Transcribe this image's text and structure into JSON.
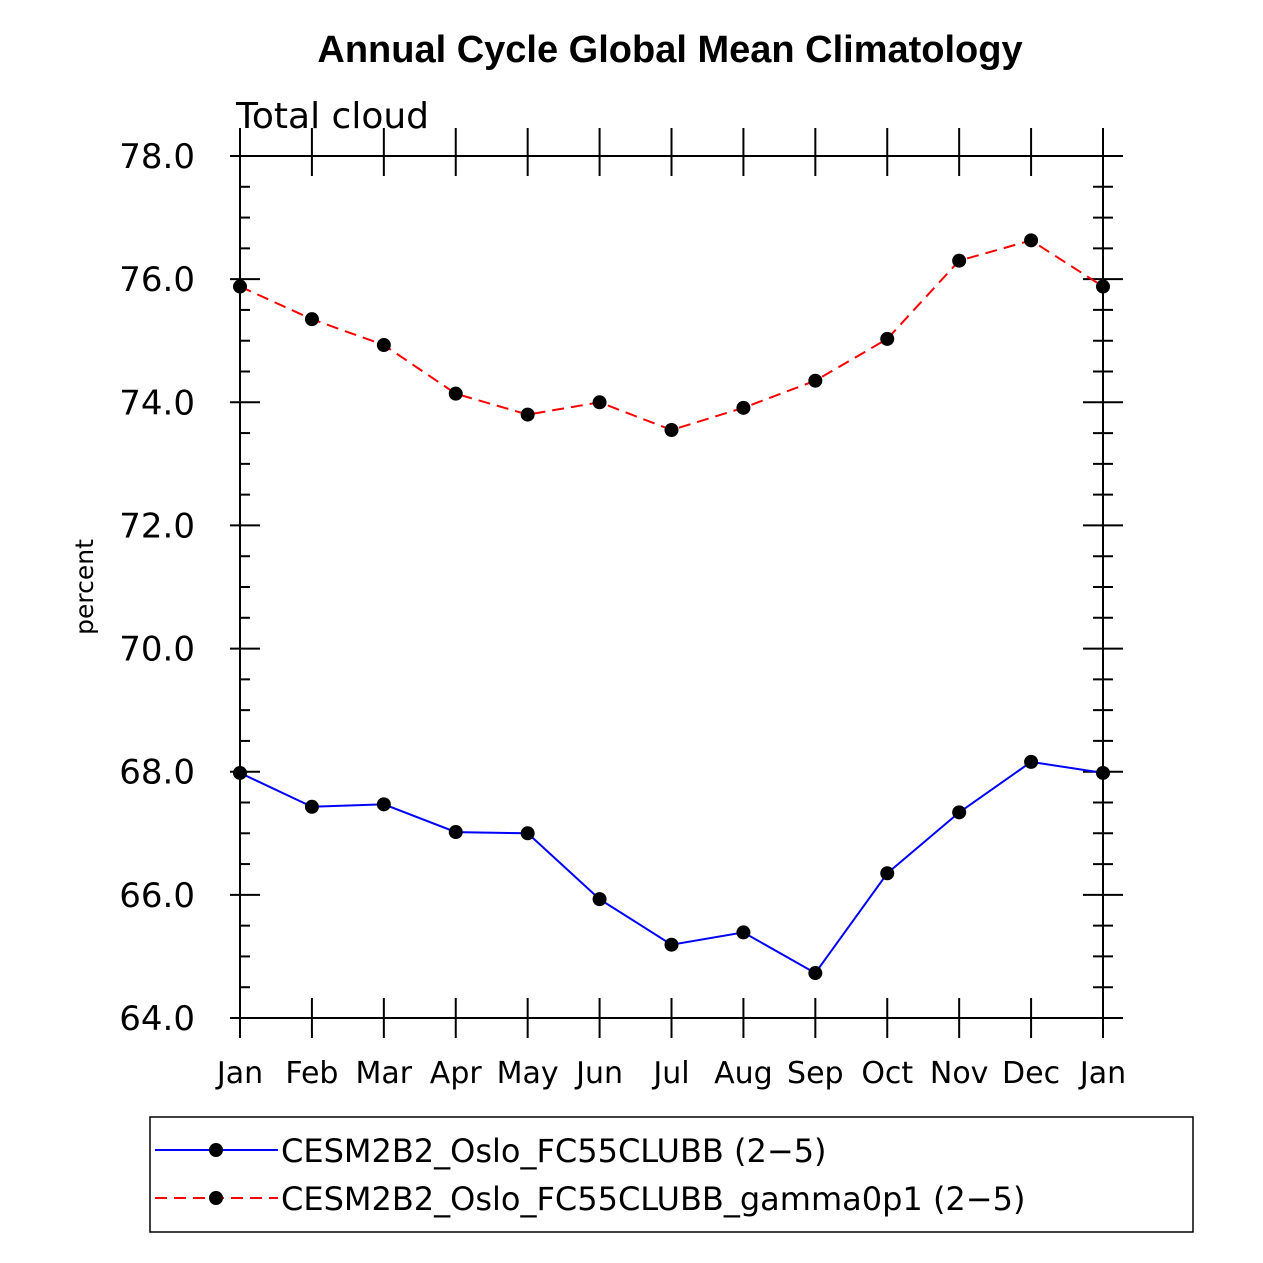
{
  "chart_data": {
    "type": "line",
    "title": "Annual Cycle Global Mean Climatology",
    "subtitle": "Total cloud",
    "xlabel": "",
    "ylabel": "percent",
    "categories": [
      "Jan",
      "Feb",
      "Mar",
      "Apr",
      "May",
      "Jun",
      "Jul",
      "Aug",
      "Sep",
      "Oct",
      "Nov",
      "Dec",
      "Jan"
    ],
    "ylim": [
      64.0,
      78.0
    ],
    "yticks": [
      "64.0",
      "66.0",
      "68.0",
      "70.0",
      "72.0",
      "74.0",
      "76.0",
      "78.0"
    ],
    "grid": false,
    "legend_position": "bottom",
    "series": [
      {
        "name": "CESM2B2_Oslo_FC55CLUBB (2−5)",
        "color": "#0000ff",
        "dash": "solid",
        "values": [
          67.98,
          67.43,
          67.47,
          67.02,
          67.0,
          65.93,
          65.19,
          65.39,
          64.73,
          66.35,
          67.34,
          68.16,
          67.98
        ]
      },
      {
        "name": "CESM2B2_Oslo_FC55CLUBB_gamma0p1 (2−5)",
        "color": "#ff0000",
        "dash": "dashed",
        "values": [
          75.88,
          75.35,
          74.93,
          74.14,
          73.8,
          74.0,
          73.55,
          73.91,
          74.35,
          75.03,
          76.3,
          76.63,
          75.88
        ]
      }
    ]
  }
}
